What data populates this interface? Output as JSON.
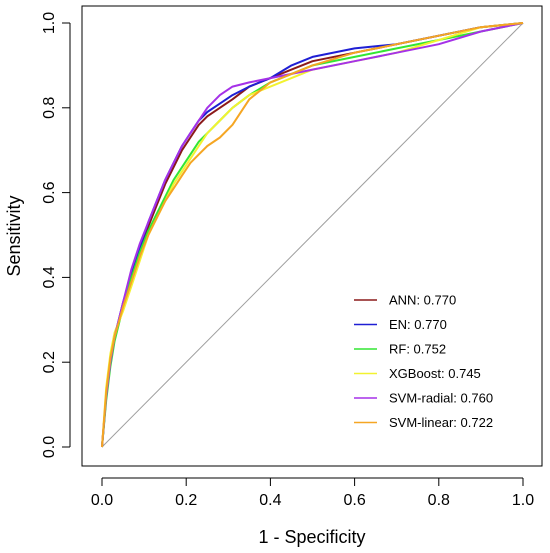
{
  "chart_data": {
    "type": "line",
    "title": "",
    "xlabel": "1 - Specificity",
    "ylabel": "Sensitivity",
    "xlim": [
      0,
      1
    ],
    "ylim": [
      0,
      1
    ],
    "x_ticks": [
      "0.0",
      "0.2",
      "0.4",
      "0.6",
      "0.8",
      "1.0"
    ],
    "y_ticks": [
      "0.0",
      "0.2",
      "0.4",
      "0.6",
      "0.8",
      "1.0"
    ],
    "grid": false,
    "legend_position": "bottom-right",
    "reference_line": {
      "x": [
        0,
        1
      ],
      "y": [
        0,
        1
      ],
      "color": "#9e9e9e"
    },
    "series": [
      {
        "name": "ANN: 0.770",
        "color": "#8b1a1a",
        "x": [
          0,
          0.01,
          0.02,
          0.03,
          0.05,
          0.07,
          0.09,
          0.11,
          0.13,
          0.15,
          0.17,
          0.19,
          0.21,
          0.23,
          0.25,
          0.28,
          0.31,
          0.35,
          0.4,
          0.45,
          0.5,
          0.6,
          0.7,
          0.8,
          0.9,
          1
        ],
        "y": [
          0,
          0.12,
          0.2,
          0.26,
          0.33,
          0.4,
          0.46,
          0.52,
          0.57,
          0.62,
          0.66,
          0.7,
          0.73,
          0.76,
          0.78,
          0.8,
          0.82,
          0.85,
          0.87,
          0.89,
          0.91,
          0.93,
          0.95,
          0.97,
          0.99,
          1
        ]
      },
      {
        "name": "EN: 0.770",
        "color": "#1f1fd4",
        "x": [
          0,
          0.01,
          0.02,
          0.03,
          0.05,
          0.07,
          0.09,
          0.11,
          0.13,
          0.15,
          0.17,
          0.19,
          0.21,
          0.23,
          0.25,
          0.28,
          0.31,
          0.35,
          0.4,
          0.45,
          0.5,
          0.6,
          0.7,
          0.8,
          0.9,
          1
        ],
        "y": [
          0,
          0.12,
          0.2,
          0.26,
          0.34,
          0.41,
          0.47,
          0.53,
          0.58,
          0.63,
          0.67,
          0.71,
          0.74,
          0.77,
          0.79,
          0.81,
          0.83,
          0.85,
          0.87,
          0.9,
          0.92,
          0.94,
          0.95,
          0.97,
          0.99,
          1
        ]
      },
      {
        "name": "RF: 0.752",
        "color": "#33e633",
        "x": [
          0,
          0.01,
          0.02,
          0.03,
          0.05,
          0.07,
          0.09,
          0.11,
          0.13,
          0.15,
          0.17,
          0.19,
          0.21,
          0.23,
          0.25,
          0.28,
          0.31,
          0.35,
          0.4,
          0.45,
          0.5,
          0.6,
          0.7,
          0.8,
          0.9,
          1
        ],
        "y": [
          0,
          0.11,
          0.19,
          0.25,
          0.33,
          0.4,
          0.46,
          0.51,
          0.55,
          0.59,
          0.63,
          0.66,
          0.69,
          0.72,
          0.74,
          0.77,
          0.8,
          0.83,
          0.86,
          0.88,
          0.9,
          0.92,
          0.94,
          0.96,
          0.98,
          1
        ]
      },
      {
        "name": "XGBoost: 0.745",
        "color": "#f2f230",
        "x": [
          0,
          0.01,
          0.02,
          0.03,
          0.05,
          0.07,
          0.09,
          0.11,
          0.13,
          0.15,
          0.17,
          0.19,
          0.21,
          0.23,
          0.25,
          0.28,
          0.31,
          0.35,
          0.4,
          0.45,
          0.5,
          0.6,
          0.7,
          0.8,
          0.9,
          1
        ],
        "y": [
          0,
          0.14,
          0.22,
          0.27,
          0.32,
          0.38,
          0.44,
          0.5,
          0.54,
          0.58,
          0.62,
          0.65,
          0.68,
          0.71,
          0.74,
          0.77,
          0.8,
          0.83,
          0.85,
          0.87,
          0.89,
          0.91,
          0.93,
          0.96,
          0.99,
          1
        ]
      },
      {
        "name": "SVM-radial: 0.760",
        "color": "#a531e8",
        "x": [
          0,
          0.01,
          0.02,
          0.03,
          0.05,
          0.07,
          0.09,
          0.11,
          0.13,
          0.15,
          0.17,
          0.19,
          0.21,
          0.23,
          0.25,
          0.28,
          0.31,
          0.35,
          0.4,
          0.45,
          0.5,
          0.6,
          0.7,
          0.8,
          0.9,
          1
        ],
        "y": [
          0,
          0.12,
          0.2,
          0.26,
          0.34,
          0.42,
          0.48,
          0.53,
          0.58,
          0.63,
          0.67,
          0.71,
          0.74,
          0.77,
          0.8,
          0.83,
          0.85,
          0.86,
          0.87,
          0.88,
          0.89,
          0.91,
          0.93,
          0.95,
          0.98,
          1
        ]
      },
      {
        "name": "SVM-linear: 0.722",
        "color": "#f5a623",
        "x": [
          0,
          0.01,
          0.02,
          0.03,
          0.05,
          0.07,
          0.09,
          0.11,
          0.13,
          0.15,
          0.17,
          0.19,
          0.21,
          0.23,
          0.25,
          0.28,
          0.31,
          0.35,
          0.4,
          0.45,
          0.5,
          0.6,
          0.7,
          0.8,
          0.9,
          1
        ],
        "y": [
          0,
          0.13,
          0.21,
          0.26,
          0.33,
          0.39,
          0.45,
          0.5,
          0.54,
          0.58,
          0.61,
          0.64,
          0.67,
          0.69,
          0.71,
          0.73,
          0.76,
          0.82,
          0.86,
          0.88,
          0.9,
          0.93,
          0.95,
          0.97,
          0.99,
          1
        ]
      }
    ]
  }
}
